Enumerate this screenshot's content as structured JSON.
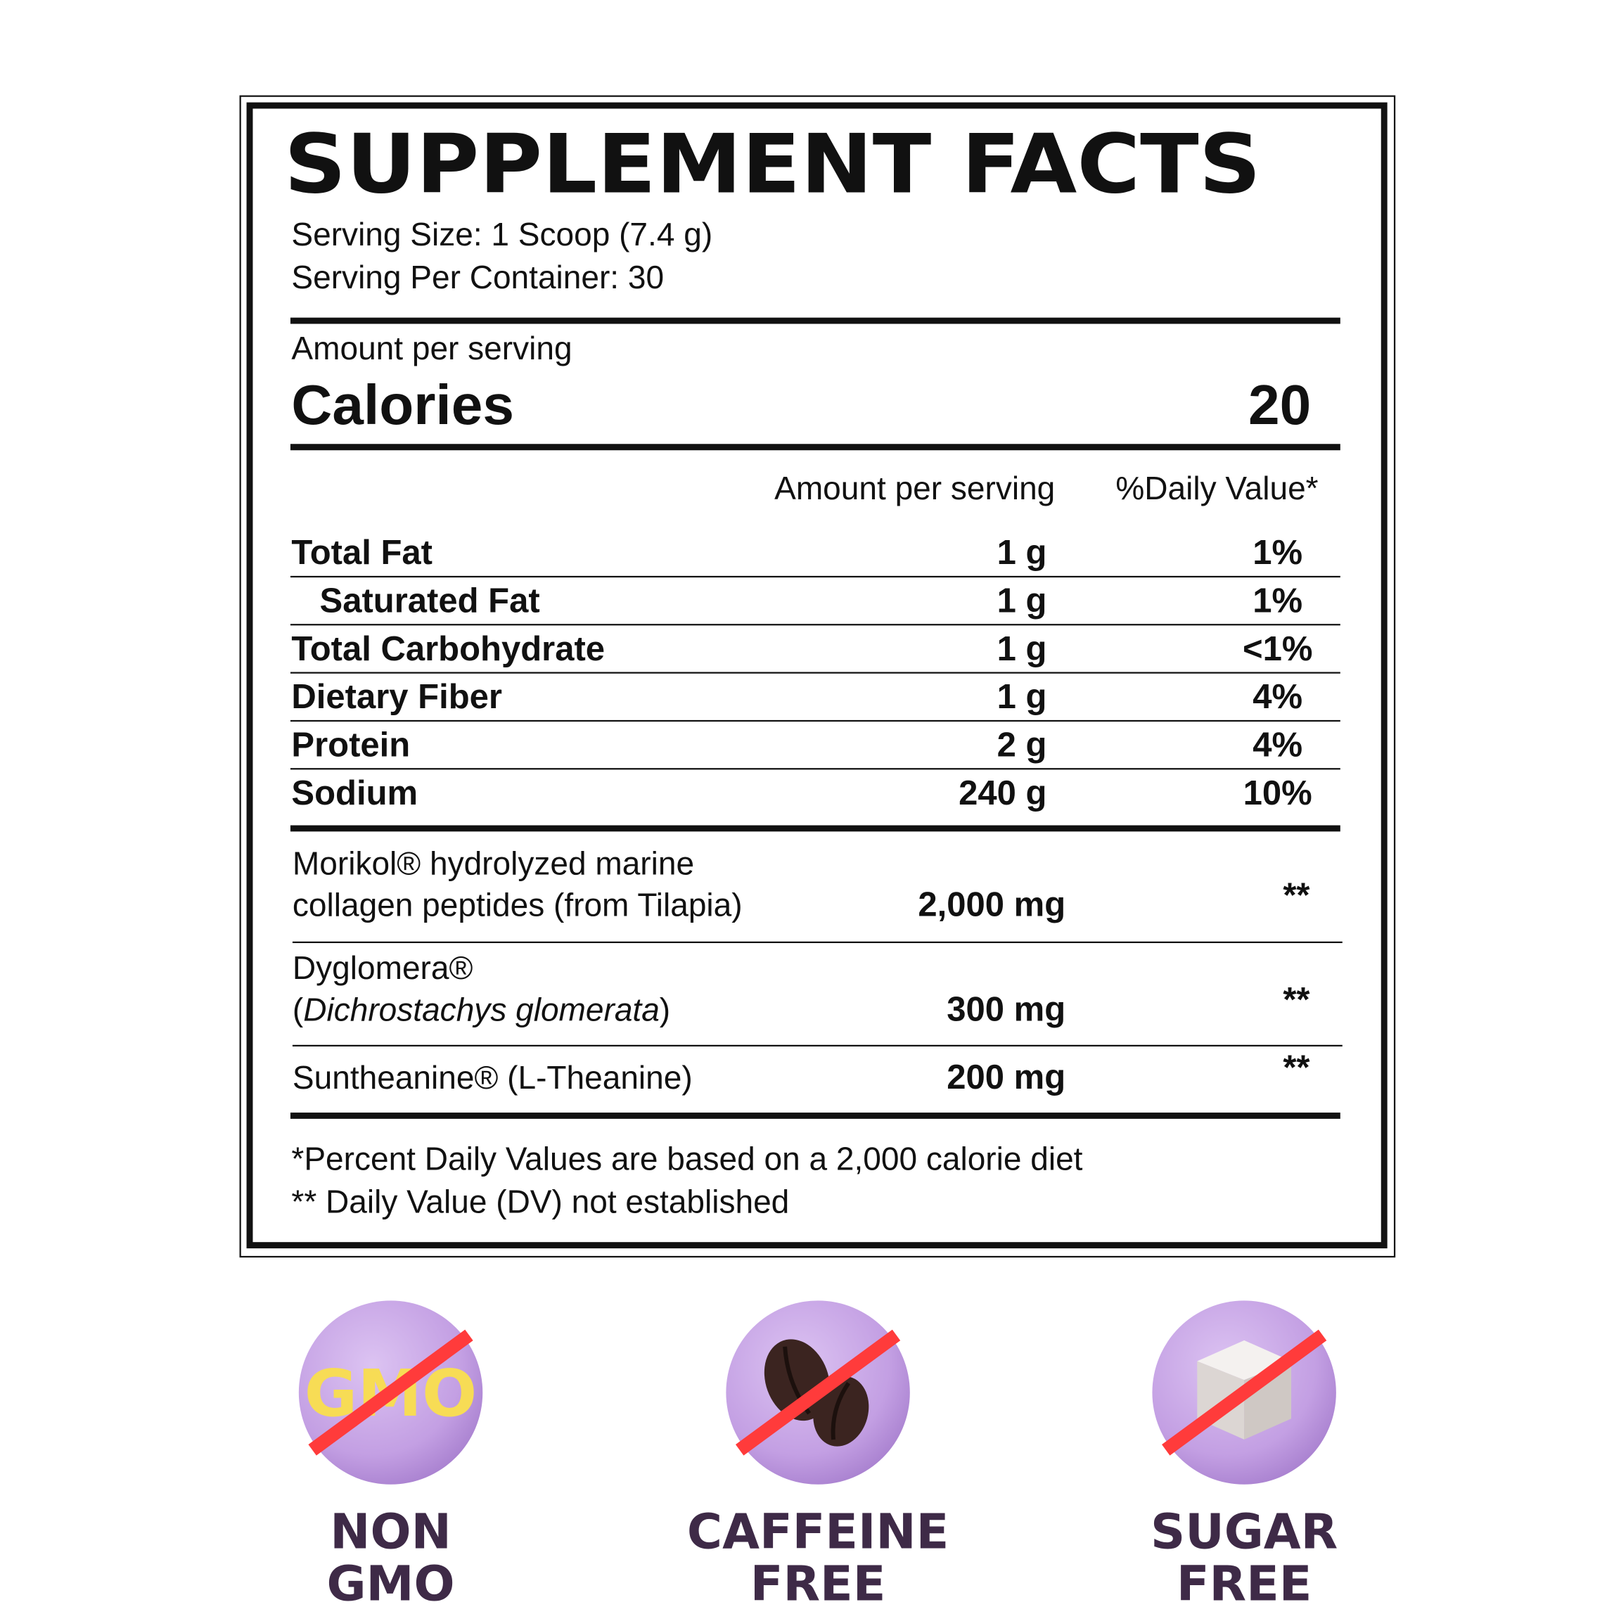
{
  "header": {
    "title": "SUPPLEMENT FACTS",
    "serving_size": "Serving Size: 1 Scoop (7.4 g)",
    "servings_per_container": "Serving Per Container: 30"
  },
  "calories": {
    "caption": "Amount per serving",
    "label": "Calories",
    "value": "20"
  },
  "table": {
    "columns": [
      "Amount per serving",
      "%Daily Value*"
    ],
    "rows": [
      [
        "Total Fat",
        "1 g",
        "1%"
      ],
      [
        "Saturated Fat",
        "1 g",
        "1%"
      ],
      [
        "Total Carbohydrate",
        "1 g",
        "<1%"
      ],
      [
        "Dietary Fiber",
        "1 g",
        "4%"
      ],
      [
        "Protein",
        "2 g",
        "4%"
      ],
      [
        "Sodium",
        "240 g",
        "10%"
      ]
    ]
  },
  "ingredients": [
    {
      "lines": [
        [
          "Morikol® hydrolyzed marine"
        ],
        [
          "collagen peptides (from Tilapia)"
        ]
      ],
      "amount": "2,000 mg",
      "dv": "**"
    },
    {
      "lines": [
        [
          "Dyglomera®"
        ],
        [
          "(",
          "Dichrostachys glomerata",
          ")"
        ]
      ],
      "amount": "300 mg",
      "dv": "**"
    },
    {
      "lines": [
        [
          "Suntheanine® (L-Theanine)"
        ]
      ],
      "amount": "200 mg",
      "dv": "**"
    }
  ],
  "footnotes": [
    "*Percent Daily Values are based on a 2,000 calorie diet",
    "** Daily Value (DV) not established"
  ],
  "badges": [
    {
      "icon_text": "GMO",
      "label": [
        "NON",
        "GMO"
      ]
    },
    {
      "label": [
        "CAFFEINE",
        "FREE"
      ]
    },
    {
      "label": [
        "SUGAR",
        "FREE"
      ]
    }
  ]
}
